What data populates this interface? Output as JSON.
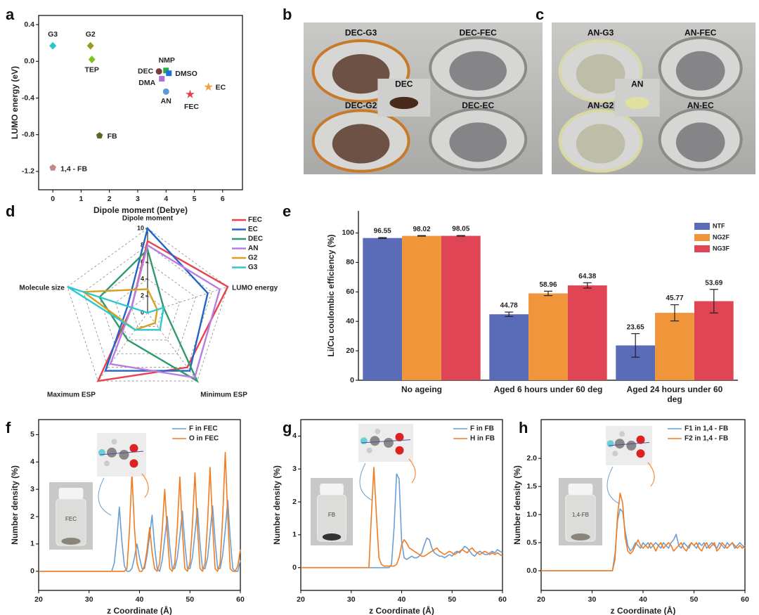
{
  "chart_data": [
    {
      "panel": "a",
      "type": "scatter",
      "xlabel": "Dipole moment (Debye)",
      "ylabel": "LUMO energy (eV)",
      "xlim": [
        -0.5,
        6.7
      ],
      "ylim": [
        -1.4,
        0.5
      ],
      "xticks": [
        0,
        1,
        2,
        3,
        4,
        5,
        6
      ],
      "yticks": [
        -1.2,
        -0.8,
        -0.4,
        {
          "value": 0,
          "label": "0.0"
        },
        0.4
      ],
      "series": [
        {
          "name": "G3",
          "color": "#27c6c8",
          "marker": "diamond",
          "x": [
            0
          ],
          "values": [
            0.17
          ]
        },
        {
          "name": "G2",
          "color": "#9a9a20",
          "marker": "diamond",
          "x": [
            1.33
          ],
          "values": [
            0.17
          ]
        },
        {
          "name": "TEP",
          "color": "#7ac520",
          "marker": "diamond",
          "x": [
            1.38
          ],
          "values": [
            0.02
          ]
        },
        {
          "name": "DEC",
          "color": "#7a3a3a",
          "marker": "circle",
          "x": [
            3.75
          ],
          "values": [
            -0.11
          ]
        },
        {
          "name": "NMP",
          "color": "#2aa84a",
          "marker": "square",
          "x": [
            4.0
          ],
          "values": [
            -0.1
          ]
        },
        {
          "name": "DMSO",
          "color": "#1f6fd6",
          "marker": "square",
          "x": [
            4.1
          ],
          "values": [
            -0.13
          ]
        },
        {
          "name": "DMA",
          "color": "#b070d8",
          "marker": "square",
          "x": [
            3.85
          ],
          "values": [
            -0.19
          ]
        },
        {
          "name": "AN",
          "color": "#5a9ad8",
          "marker": "circle",
          "x": [
            4.0
          ],
          "values": [
            -0.33
          ]
        },
        {
          "name": "FEC",
          "color": "#e04050",
          "marker": "star",
          "x": [
            4.85
          ],
          "values": [
            -0.36
          ]
        },
        {
          "name": "EC",
          "color": "#f0a040",
          "marker": "star",
          "x": [
            5.5
          ],
          "values": [
            -0.28
          ]
        },
        {
          "name": "FB",
          "color": "#556b20",
          "marker": "pentagon",
          "x": [
            1.65
          ],
          "values": [
            -0.81
          ]
        },
        {
          "name": "1,4 - FB",
          "color": "#c08a8a",
          "marker": "pentagon",
          "x": [
            0
          ],
          "values": [
            -1.16
          ]
        }
      ]
    },
    {
      "panel": "d",
      "type": "radar",
      "axes": [
        "Dipole moment",
        "LUMO energy",
        "Minimum ESP",
        "Maximum ESP",
        "Molecule size"
      ],
      "rlim": [
        0,
        10
      ],
      "rticks": [
        0,
        2,
        4,
        6,
        8,
        10
      ],
      "grid": true,
      "legend": "upper right",
      "series": [
        {
          "name": "FEC",
          "color": "#e8414f",
          "values": [
            8.5,
            10,
            8,
            10,
            2
          ]
        },
        {
          "name": "EC",
          "color": "#2264c8",
          "values": [
            10,
            7.5,
            8.5,
            8.5,
            2.5
          ]
        },
        {
          "name": "DEC",
          "color": "#2f9a6a",
          "values": [
            7.5,
            2,
            10,
            4,
            6
          ]
        },
        {
          "name": "AN",
          "color": "#b77ee0",
          "values": [
            8,
            9,
            9.5,
            7.5,
            2
          ]
        },
        {
          "name": "G2",
          "color": "#d8a020",
          "values": [
            2.8,
            1.2,
            1.5,
            2.5,
            8
          ]
        },
        {
          "name": "G3",
          "color": "#2ec8d0",
          "values": [
            0,
            2,
            2.5,
            2.5,
            10
          ]
        }
      ]
    },
    {
      "panel": "e",
      "type": "bar",
      "ylabel": "Li/Cu coulombic efficiency (%)",
      "categories": [
        "No ageing",
        "Aged 6 hours under 60 deg",
        "Aged 24 hours under 60 deg"
      ],
      "ylim": [
        0,
        115
      ],
      "yticks": [
        0,
        20,
        40,
        60,
        80,
        100
      ],
      "legend": "upper right",
      "series": [
        {
          "name": "NTF",
          "color": "#5a6bb8",
          "values": [
            96.55,
            44.78,
            23.65
          ],
          "errors": [
            0.3,
            1.5,
            8
          ]
        },
        {
          "name": "NG2F",
          "color": "#f0953a",
          "values": [
            98.02,
            58.96,
            45.77
          ],
          "errors": [
            0.2,
            1.5,
            5.5
          ]
        },
        {
          "name": "NG3F",
          "color": "#e04555",
          "values": [
            98.05,
            64.38,
            53.69
          ],
          "errors": [
            0.2,
            1.8,
            8
          ]
        }
      ]
    },
    {
      "panel": "f",
      "type": "line",
      "xlabel": "z Coordinate (Å)",
      "ylabel": "Number density (%)",
      "xlim": [
        20,
        60
      ],
      "xticks": [
        20,
        30,
        40,
        50,
        60
      ],
      "ylim": [
        -0.7,
        5.55
      ],
      "yticks": [
        0,
        1,
        2,
        3,
        4,
        5
      ],
      "legend": "upper right",
      "inset_label": "FEC",
      "x": [
        20,
        33.5,
        34,
        34.5,
        35,
        35.5,
        36,
        36.5,
        37,
        37.5,
        38,
        38.5,
        39,
        39.5,
        40,
        40.5,
        41,
        41.5,
        42,
        42.5,
        43,
        43.5,
        44,
        44.5,
        45,
        45.5,
        46,
        46.5,
        47,
        47.5,
        48,
        48.5,
        49,
        49.5,
        50,
        50.5,
        51,
        51.5,
        52,
        52.5,
        53,
        53.5,
        54,
        54.5,
        55,
        55.5,
        56,
        56.5,
        57,
        57.5,
        58,
        58.5,
        59,
        59.5,
        60
      ],
      "series": [
        {
          "name": "F in FEC",
          "color": "#6a9fd4",
          "values": [
            0,
            0,
            0,
            0,
            0.3,
            1.2,
            2.35,
            1.1,
            0.2,
            0,
            0,
            0.1,
            0.5,
            1.0,
            0.5,
            0.1,
            0.1,
            0.6,
            1.3,
            2.05,
            0.9,
            0.1,
            0,
            0.4,
            1.2,
            2.0,
            0.9,
            0.1,
            0.1,
            0.5,
            1.3,
            2.2,
            1.0,
            0.1,
            0.1,
            0.5,
            1.4,
            2.3,
            1.0,
            0.1,
            0.1,
            0.5,
            1.4,
            2.4,
            1.1,
            0.1,
            0.1,
            0.6,
            1.5,
            2.6,
            1.2,
            0.1,
            0,
            0,
            0.4
          ]
        },
        {
          "name": "O in FEC",
          "color": "#f37b20",
          "values": [
            0,
            0,
            0,
            0,
            0,
            0,
            0,
            0,
            0,
            0.1,
            1.5,
            3.6,
            1.6,
            0.3,
            0,
            0,
            0.2,
            0.8,
            1.6,
            0.7,
            0.1,
            0,
            0.3,
            1.5,
            3.0,
            1.4,
            0.1,
            0,
            0.3,
            1.6,
            3.45,
            1.5,
            0.1,
            0,
            0.3,
            1.7,
            3.6,
            1.6,
            0.1,
            0,
            0.3,
            1.8,
            3.8,
            1.7,
            0.1,
            0,
            0.3,
            2.0,
            4.35,
            2.0,
            0.1,
            0,
            0,
            0.2,
            0.8
          ]
        }
      ]
    },
    {
      "panel": "g",
      "type": "line",
      "xlabel": "z Coordinate (Å)",
      "ylabel": "Number density (%)",
      "xlim": [
        20,
        60
      ],
      "xticks": [
        20,
        30,
        40,
        50,
        60
      ],
      "ylim": [
        -0.69,
        4.5
      ],
      "yticks": [
        0,
        1,
        2,
        3,
        4
      ],
      "legend": "upper right",
      "inset_label": "FB",
      "x": [
        20,
        33.5,
        34,
        34.5,
        35,
        35.5,
        36,
        36.5,
        37,
        37.5,
        38,
        38.5,
        39,
        39.5,
        40,
        40.5,
        41,
        41.5,
        42,
        42.5,
        43,
        43.5,
        44,
        44.5,
        45,
        45.5,
        46,
        46.5,
        47,
        47.5,
        48,
        48.5,
        49,
        49.5,
        50,
        50.5,
        51,
        51.5,
        52,
        52.5,
        53,
        53.5,
        54,
        54.5,
        55,
        55.5,
        56,
        56.5,
        57,
        57.5,
        58,
        58.5,
        59,
        59.5,
        60
      ],
      "series": [
        {
          "name": "F in FB",
          "color": "#6a9fd4",
          "values": [
            0,
            0,
            0,
            0,
            0,
            0,
            0,
            0,
            0,
            0,
            0.1,
            1.2,
            2.85,
            2.7,
            0.8,
            0.3,
            0.25,
            0.3,
            0.35,
            0.3,
            0.3,
            0.35,
            0.45,
            0.7,
            0.9,
            0.85,
            0.6,
            0.45,
            0.4,
            0.35,
            0.35,
            0.3,
            0.35,
            0.4,
            0.35,
            0.45,
            0.5,
            0.45,
            0.55,
            0.65,
            0.6,
            0.5,
            0.4,
            0.35,
            0.45,
            0.5,
            0.45,
            0.4,
            0.4,
            0.45,
            0.5,
            0.45,
            0.55,
            0.5,
            0.45
          ]
        },
        {
          "name": "H in FB",
          "color": "#f37b20",
          "values": [
            0,
            0,
            1.6,
            3.05,
            1.6,
            0.3,
            0.1,
            0.05,
            0.05,
            0.05,
            0.05,
            0.05,
            0.1,
            0.3,
            0.7,
            0.85,
            0.75,
            0.6,
            0.55,
            0.5,
            0.45,
            0.4,
            0.35,
            0.35,
            0.4,
            0.45,
            0.5,
            0.55,
            0.6,
            0.5,
            0.45,
            0.4,
            0.45,
            0.5,
            0.45,
            0.4,
            0.45,
            0.5,
            0.55,
            0.5,
            0.45,
            0.55,
            0.6,
            0.5,
            0.45,
            0.4,
            0.45,
            0.5,
            0.45,
            0.4,
            0.45,
            0.4,
            0.45,
            0.4,
            0.35
          ]
        }
      ]
    },
    {
      "panel": "h",
      "type": "line",
      "xlabel": "z Coordinate (Å)",
      "ylabel": "Number density (%)",
      "xlim": [
        20,
        60
      ],
      "xticks": [
        20,
        30,
        40,
        50,
        60
      ],
      "ylim": [
        -0.35,
        2.69
      ],
      "yticks": [
        {
          "value": 0,
          "label": "0.0"
        },
        0.5,
        {
          "value": 1,
          "label": "1.0"
        },
        1.5,
        {
          "value": 2,
          "label": "2.0"
        }
      ],
      "legend": "upper right",
      "inset_label": "1,4-FB",
      "x": [
        20,
        33.5,
        34,
        34.5,
        35,
        35.5,
        36,
        36.5,
        37,
        37.5,
        38,
        38.5,
        39,
        39.5,
        40,
        40.5,
        41,
        41.5,
        42,
        42.5,
        43,
        43.5,
        44,
        44.5,
        45,
        45.5,
        46,
        46.5,
        47,
        47.5,
        48,
        48.5,
        49,
        49.5,
        50,
        50.5,
        51,
        51.5,
        52,
        52.5,
        53,
        53.5,
        54,
        54.5,
        55,
        55.5,
        56,
        56.5,
        57,
        57.5,
        58,
        58.5,
        59,
        59.5,
        60
      ],
      "series": [
        {
          "name": "F1 in 1,4 - FB",
          "color": "#6a9fd4",
          "values": [
            0,
            0,
            0,
            0.3,
            0.9,
            1.1,
            1.05,
            0.7,
            0.45,
            0.35,
            0.4,
            0.5,
            0.45,
            0.4,
            0.5,
            0.45,
            0.5,
            0.4,
            0.45,
            0.5,
            0.45,
            0.4,
            0.5,
            0.45,
            0.4,
            0.5,
            0.55,
            0.65,
            0.45,
            0.4,
            0.5,
            0.45,
            0.4,
            0.5,
            0.45,
            0.4,
            0.5,
            0.45,
            0.5,
            0.4,
            0.45,
            0.5,
            0.45,
            0.4,
            0.5,
            0.45,
            0.4,
            0.5,
            0.45,
            0.5,
            0.4,
            0.45,
            0.5,
            0.45,
            0.4
          ]
        },
        {
          "name": "F2 in 1,4 - FB",
          "color": "#f37b20",
          "values": [
            0,
            0,
            0,
            0.2,
            1.0,
            1.38,
            1.2,
            0.6,
            0.35,
            0.3,
            0.35,
            0.45,
            0.55,
            0.45,
            0.4,
            0.45,
            0.4,
            0.5,
            0.45,
            0.35,
            0.45,
            0.5,
            0.4,
            0.45,
            0.5,
            0.45,
            0.35,
            0.4,
            0.45,
            0.5,
            0.4,
            0.35,
            0.45,
            0.5,
            0.45,
            0.5,
            0.4,
            0.35,
            0.45,
            0.5,
            0.4,
            0.45,
            0.5,
            0.35,
            0.4,
            0.5,
            0.45,
            0.4,
            0.45,
            0.5,
            0.45,
            0.4,
            0.45,
            0.4,
            0.45
          ]
        }
      ]
    }
  ],
  "photos": [
    {
      "panel": "b",
      "labels": [
        "DEC-G3",
        "DEC-FEC",
        "DEC",
        "DEC-G2",
        "DEC-EC"
      ]
    },
    {
      "panel": "c",
      "labels": [
        "AN-G3",
        "AN-FEC",
        "AN",
        "AN-G2",
        "AN-EC"
      ]
    }
  ]
}
